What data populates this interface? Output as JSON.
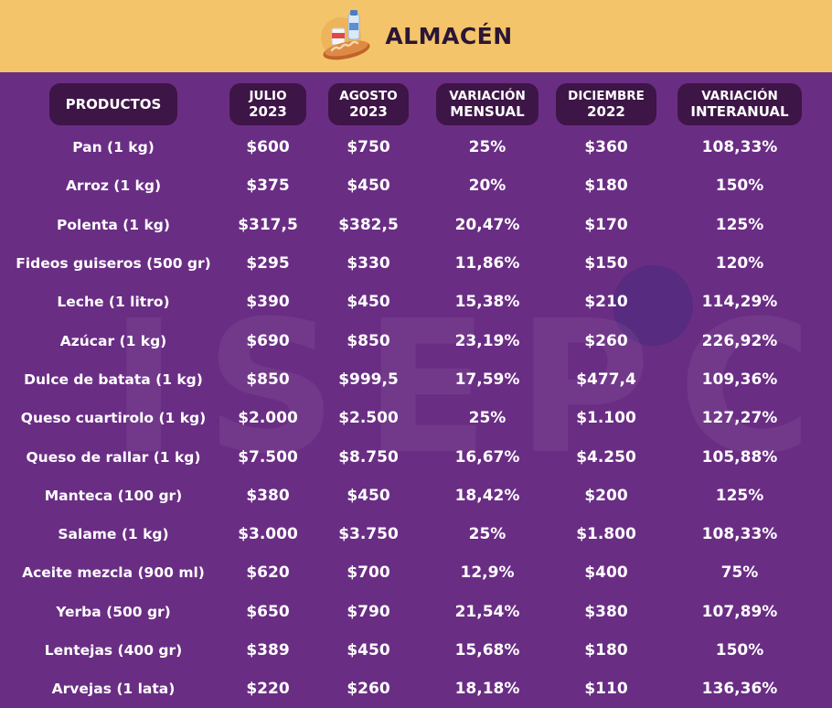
{
  "header": {
    "title": "ALMACÉN",
    "icon": "bread-milk-groceries-icon",
    "background_color": "#f3c46a"
  },
  "watermark": {
    "text": "ISEPCI"
  },
  "table": {
    "columns": [
      {
        "line1": "PRODUCTOS",
        "line2": ""
      },
      {
        "line1": "JULIO",
        "line2": "2023"
      },
      {
        "line1": "AGOSTO",
        "line2": "2023"
      },
      {
        "line1": "VARIACIÓN",
        "line2": "MENSUAL"
      },
      {
        "line1": "DICIEMBRE",
        "line2": "2022"
      },
      {
        "line1": "VARIACIÓN",
        "line2": "INTERANUAL"
      }
    ],
    "rows": [
      [
        "Pan (1 kg)",
        "$600",
        "$750",
        "25%",
        "$360",
        "108,33%"
      ],
      [
        "Arroz (1 kg)",
        "$375",
        "$450",
        "20%",
        "$180",
        "150%"
      ],
      [
        "Polenta (1 kg)",
        "$317,5",
        "$382,5",
        "20,47%",
        "$170",
        "125%"
      ],
      [
        "Fideos guiseros (500 gr)",
        "$295",
        "$330",
        "11,86%",
        "$150",
        "120%"
      ],
      [
        "Leche (1 litro)",
        "$390",
        "$450",
        "15,38%",
        "$210",
        "114,29%"
      ],
      [
        "Azúcar (1 kg)",
        "$690",
        "$850",
        "23,19%",
        "$260",
        "226,92%"
      ],
      [
        "Dulce de batata (1 kg)",
        "$850",
        "$999,5",
        "17,59%",
        "$477,4",
        "109,36%"
      ],
      [
        "Queso cuartirolo (1 kg)",
        "$2.000",
        "$2.500",
        "25%",
        "$1.100",
        "127,27%"
      ],
      [
        "Queso de rallar (1 kg)",
        "$7.500",
        "$8.750",
        "16,67%",
        "$4.250",
        "105,88%"
      ],
      [
        "Manteca (100 gr)",
        "$380",
        "$450",
        "18,42%",
        "$200",
        "125%"
      ],
      [
        "Salame (1 kg)",
        "$3.000",
        "$3.750",
        "25%",
        "$1.800",
        "108,33%"
      ],
      [
        "Aceite mezcla (900 ml)",
        "$620",
        "$700",
        "12,9%",
        "$400",
        "75%"
      ],
      [
        "Yerba (500 gr)",
        "$650",
        "$790",
        "21,54%",
        "$380",
        "107,89%"
      ],
      [
        "Lentejas (400 gr)",
        "$389",
        "$450",
        "15,68%",
        "$180",
        "150%"
      ],
      [
        "Arvejas (1 lata)",
        "$220",
        "$260",
        "18,18%",
        "$110",
        "136,36%"
      ]
    ]
  },
  "colors": {
    "background": "#6a2d84",
    "header_pill": "#3d1546",
    "text": "#ffffff"
  }
}
